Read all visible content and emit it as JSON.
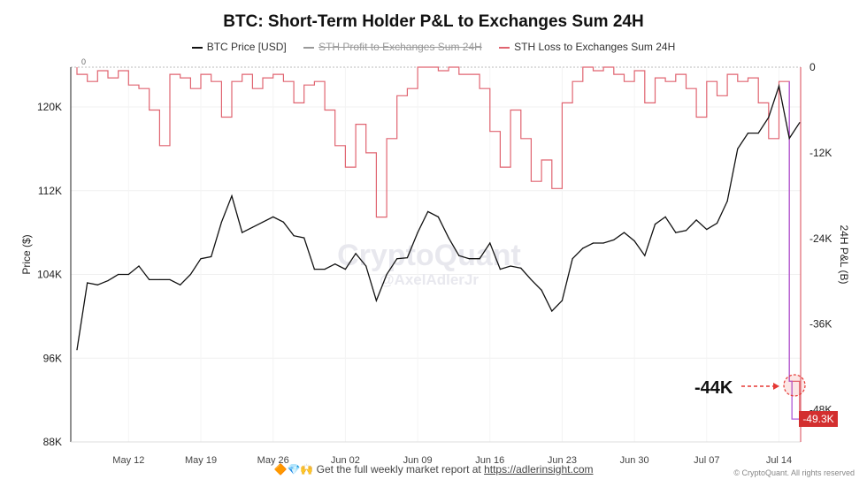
{
  "chart_data": {
    "type": "line",
    "title": "BTC: Short-Term Holder P&L to Exchanges Sum 24H",
    "legend": {
      "placement": "top",
      "entries": [
        {
          "name": "BTC Price [USD]",
          "color": "#111111",
          "hidden": false
        },
        {
          "name": "STH Profit to Exchanges Sum 24H",
          "color": "#999999",
          "hidden": true
        },
        {
          "name": "STH Loss to Exchanges Sum 24H",
          "color": "#e06470",
          "hidden": false
        }
      ]
    },
    "ylabel_left": "Price ($)",
    "ylabel_right": "24H P&L (B)",
    "yticks_left": [
      "120K",
      "112K",
      "104K",
      "96K",
      "88K"
    ],
    "ylim_left": [
      88000,
      123800
    ],
    "yticks_right": [
      "0",
      "-12K",
      "-24K",
      "-36K",
      "-48K"
    ],
    "ylim_right": [
      -52500,
      0
    ],
    "xticks": [
      "May 12",
      "May 19",
      "May 26",
      "Jun 02",
      "Jun 09",
      "Jun 16",
      "Jun 23",
      "Jun 30",
      "Jul 07",
      "Jul 14"
    ],
    "dates": [
      "May 7",
      "May 8",
      "May 9",
      "May 10",
      "May 11",
      "May 12",
      "May 13",
      "May 14",
      "May 15",
      "May 16",
      "May 17",
      "May 18",
      "May 19",
      "May 20",
      "May 21",
      "May 22",
      "May 23",
      "May 24",
      "May 25",
      "May 26",
      "May 27",
      "May 28",
      "May 29",
      "May 30",
      "May 31",
      "Jun 1",
      "Jun 2",
      "Jun 3",
      "Jun 4",
      "Jun 5",
      "Jun 6",
      "Jun 7",
      "Jun 8",
      "Jun 9",
      "Jun 10",
      "Jun 11",
      "Jun 12",
      "Jun 13",
      "Jun 14",
      "Jun 15",
      "Jun 16",
      "Jun 17",
      "Jun 18",
      "Jun 19",
      "Jun 20",
      "Jun 21",
      "Jun 22",
      "Jun 23",
      "Jun 24",
      "Jun 25",
      "Jun 26",
      "Jun 27",
      "Jun 28",
      "Jun 29",
      "Jun 30",
      "Jul 1",
      "Jul 2",
      "Jul 3",
      "Jul 4",
      "Jul 5",
      "Jul 6",
      "Jul 7",
      "Jul 8",
      "Jul 9",
      "Jul 10",
      "Jul 11",
      "Jul 12",
      "Jul 13",
      "Jul 14",
      "Jul 15",
      "Jul 16"
    ],
    "series": [
      {
        "name": "BTC Price [USD]",
        "axis": "left",
        "values": [
          96800,
          103200,
          103000,
          103400,
          104000,
          104000,
          104800,
          103500,
          103500,
          103500,
          103000,
          104000,
          105500,
          105700,
          109000,
          111500,
          108000,
          108500,
          109000,
          109500,
          109000,
          107700,
          107500,
          104500,
          104500,
          105000,
          104500,
          106000,
          104800,
          101500,
          104000,
          105500,
          105600,
          108000,
          110000,
          109500,
          107500,
          105800,
          105500,
          105500,
          107000,
          104500,
          104800,
          104600,
          103500,
          102500,
          100500,
          101500,
          105500,
          106500,
          107000,
          107000,
          107300,
          108000,
          107200,
          105800,
          108800,
          109500,
          108000,
          108200,
          109200,
          108300,
          108900,
          111000,
          116000,
          117500,
          117500,
          119000,
          122000,
          117000,
          118500
        ]
      },
      {
        "name": "STH Loss to Exchanges Sum 24H",
        "axis": "right",
        "values": [
          -1000,
          -2000,
          -500,
          -1500,
          -500,
          -2500,
          -3000,
          -6000,
          -11000,
          -1000,
          -1500,
          -3000,
          -1000,
          -2000,
          -7000,
          -2000,
          -1000,
          -3000,
          -1500,
          -1000,
          -2000,
          -5000,
          -2500,
          -2000,
          -6000,
          -11000,
          -14000,
          -8000,
          -12000,
          -21000,
          -10000,
          -4000,
          -3000,
          0,
          0,
          -500,
          0,
          -1000,
          -1000,
          -3000,
          -9000,
          -14000,
          -6000,
          -10000,
          -16000,
          -13000,
          -17000,
          -5000,
          -2000,
          0,
          -500,
          0,
          -1000,
          -2000,
          -500,
          -5000,
          -1500,
          -2000,
          -1000,
          -3000,
          -7000,
          -2000,
          -4000,
          -1000,
          -2000,
          -1500,
          -5000,
          -10000,
          -2000,
          -44000,
          -49300
        ]
      }
    ],
    "annotations": {
      "callout": "-44K",
      "last_value": "-49.3K",
      "zero_label": "0"
    },
    "grid": true
  },
  "watermark": {
    "brand": "CryptoQuant",
    "handle": "@AxelAdlerJr"
  },
  "footer": {
    "emoji": "🔶💎🙌",
    "text": "Get the full weekly market report at",
    "link": "https://adlerinsight.com"
  },
  "copyright": "© CryptoQuant. All rights reserved"
}
